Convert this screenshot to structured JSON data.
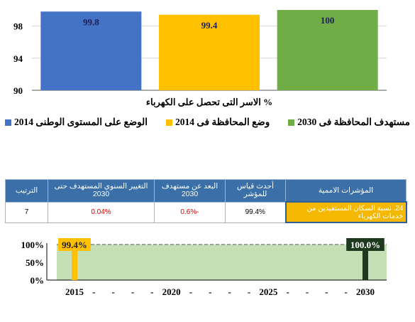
{
  "chart_data": [
    {
      "type": "bar",
      "title": "",
      "xlabel": "% الاسر التى تحصل على الكهرباء",
      "ylabel": "",
      "ylim": [
        90,
        100
      ],
      "yticks": [
        90,
        94,
        98
      ],
      "grid": true,
      "legend_position": "bottom",
      "series": [
        {
          "name": "الوضع على المستوى الوطنى 2014",
          "value": 99.8,
          "label": "99.8",
          "color": "#4472c4"
        },
        {
          "name": "وضع المحافظة فى 2014",
          "value": 99.4,
          "label": "99.4",
          "color": "#ffc000"
        },
        {
          "name": "مستهدف المحافظة فى 2030",
          "value": 100,
          "label": "100",
          "color": "#70ad47"
        }
      ]
    },
    {
      "type": "bar",
      "title": "",
      "yticks": [
        "0%",
        "50%",
        "100%"
      ],
      "ylim": [
        0,
        100
      ],
      "xticks": [
        "2015",
        "-",
        "-",
        "-",
        "-",
        "2020",
        "-",
        "-",
        "-",
        "-",
        "2025",
        "-",
        "-",
        "-",
        "-",
        "2030"
      ],
      "xlim": [
        2015,
        2030
      ],
      "target_line": 100,
      "markers": [
        {
          "year": 2015,
          "value": 99.4,
          "label": "99.4%",
          "color": "#ffc000"
        },
        {
          "year": 2030,
          "value": 100,
          "label": "100.0%",
          "color": "#1e3a1e"
        }
      ],
      "band_color": "#c5e0b4"
    }
  ],
  "table": {
    "headers": {
      "indicator": "المؤشرات الاممية",
      "latest": "أحدث قياس للمؤشر",
      "distance": "البعد عن مستهدف 2030",
      "annual_change": "التغيير السنوي المستهدف حتى 2030",
      "rank": "الترتيب"
    },
    "row": {
      "indicator": "24. نسبة السكان المستفيدين من خدمات الكهرباء",
      "latest": "99.4%",
      "distance": "-0.6%",
      "annual_change": "0.04%",
      "rank": "7"
    }
  }
}
